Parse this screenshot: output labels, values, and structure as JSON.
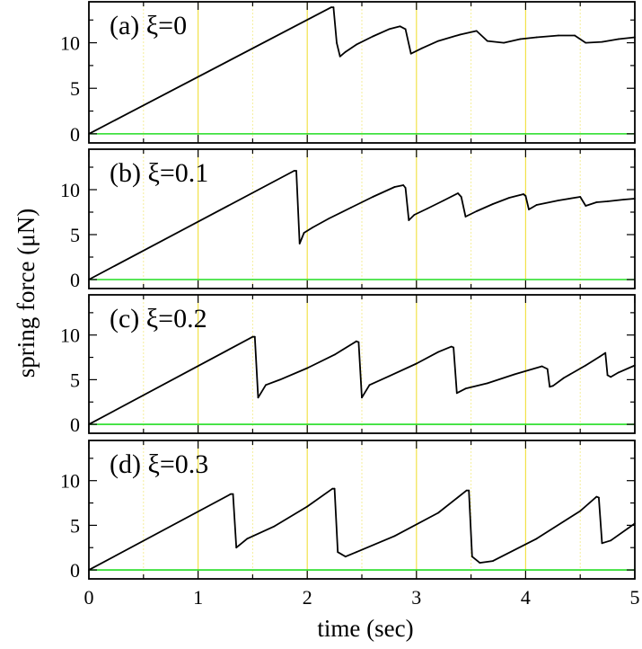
{
  "figure": {
    "xlabel": "time (sec)",
    "ylabel": "spring force (μN)"
  },
  "chart_data": [
    {
      "type": "line",
      "label": "(a) ξ=0",
      "xlim": [
        0,
        5
      ],
      "ylim": [
        -1,
        14.5
      ],
      "xticks": [
        "0",
        "1",
        "2",
        "3",
        "4",
        "5"
      ],
      "yticks": [
        "0",
        "5",
        "10"
      ],
      "grid": "vertical yellow lines at every 0.5 sec",
      "reference_line_y": 0,
      "series": [
        {
          "x": [
            0,
            2.22,
            2.24,
            2.27,
            2.3,
            2.35,
            2.45,
            2.6,
            2.75,
            2.85,
            2.9,
            2.95,
            3.05,
            3.2,
            3.4,
            3.55,
            3.65,
            3.8,
            3.95,
            4.1,
            4.3,
            4.45,
            4.55,
            4.7,
            4.85,
            5.0
          ],
          "y": [
            0,
            13.9,
            13.9,
            10,
            8.5,
            9.0,
            9.8,
            10.7,
            11.5,
            11.8,
            11.5,
            8.8,
            9.4,
            10.2,
            10.9,
            11.3,
            10.2,
            10.0,
            10.4,
            10.6,
            10.8,
            10.8,
            10.0,
            10.1,
            10.4,
            10.6
          ]
        }
      ]
    },
    {
      "type": "line",
      "label": "(b) ξ=0.1",
      "xlim": [
        0,
        5
      ],
      "ylim": [
        -1,
        14.5
      ],
      "xticks": [
        "0",
        "1",
        "2",
        "3",
        "4",
        "5"
      ],
      "yticks": [
        "0",
        "5",
        "10"
      ],
      "grid": "vertical yellow lines at every 0.5 sec",
      "reference_line_y": 0,
      "series": [
        {
          "x": [
            0,
            1.88,
            1.9,
            1.93,
            1.97,
            2.05,
            2.2,
            2.4,
            2.6,
            2.8,
            2.88,
            2.9,
            2.93,
            2.98,
            3.1,
            3.25,
            3.38,
            3.41,
            3.45,
            3.55,
            3.7,
            3.85,
            3.98,
            4.0,
            4.03,
            4.1,
            4.3,
            4.5,
            4.55,
            4.65,
            4.75,
            4.9,
            5.0
          ],
          "y": [
            0,
            12.1,
            12.1,
            4.0,
            5.2,
            5.8,
            6.8,
            8.0,
            9.2,
            10.3,
            10.5,
            10.2,
            6.6,
            7.2,
            7.9,
            8.8,
            9.6,
            9.2,
            7.0,
            7.6,
            8.4,
            9.1,
            9.5,
            9.3,
            7.8,
            8.3,
            8.8,
            9.2,
            8.2,
            8.6,
            8.7,
            8.9,
            9.0
          ]
        }
      ]
    },
    {
      "type": "line",
      "label": "(c) ξ=0.2",
      "xlim": [
        0,
        5
      ],
      "ylim": [
        -1,
        14.5
      ],
      "xticks": [
        "0",
        "1",
        "2",
        "3",
        "4",
        "5"
      ],
      "yticks": [
        "0",
        "5",
        "10"
      ],
      "grid": "vertical yellow lines at every 0.5 sec",
      "reference_line_y": 0,
      "series": [
        {
          "x": [
            0,
            1.5,
            1.52,
            1.55,
            1.62,
            1.75,
            2.0,
            2.25,
            2.45,
            2.47,
            2.5,
            2.57,
            2.75,
            3.0,
            3.2,
            3.32,
            3.34,
            3.37,
            3.45,
            3.65,
            3.9,
            4.15,
            4.2,
            4.22,
            4.25,
            4.35,
            4.55,
            4.68,
            4.73,
            4.75,
            4.78,
            4.85,
            5.0
          ],
          "y": [
            0,
            9.8,
            9.8,
            3.0,
            4.4,
            5.0,
            6.3,
            7.8,
            9.3,
            9.2,
            3.0,
            4.4,
            5.4,
            6.8,
            8.1,
            8.7,
            8.6,
            3.5,
            4.0,
            4.6,
            5.6,
            6.5,
            6.2,
            4.2,
            4.3,
            5.2,
            6.6,
            7.6,
            8.0,
            5.5,
            5.3,
            5.8,
            6.6
          ]
        }
      ]
    },
    {
      "type": "line",
      "label": "(d) ξ=0.3",
      "xlim": [
        0,
        5
      ],
      "ylim": [
        -1,
        14.5
      ],
      "xticks": [
        "0",
        "1",
        "2",
        "3",
        "4",
        "5"
      ],
      "yticks": [
        "0",
        "5",
        "10"
      ],
      "grid": "vertical yellow lines at every 0.5 sec",
      "reference_line_y": 0,
      "series": [
        {
          "x": [
            0,
            1.3,
            1.32,
            1.35,
            1.45,
            1.7,
            2.0,
            2.23,
            2.25,
            2.28,
            2.35,
            2.45,
            2.8,
            3.2,
            3.46,
            3.48,
            3.51,
            3.58,
            3.7,
            4.1,
            4.5,
            4.65,
            4.67,
            4.7,
            4.78,
            5.0
          ],
          "y": [
            0,
            8.5,
            8.5,
            2.5,
            3.5,
            4.9,
            7.1,
            9.1,
            9.1,
            2.0,
            1.5,
            2.0,
            3.8,
            6.4,
            8.9,
            8.9,
            1.5,
            0.8,
            1.0,
            3.5,
            6.6,
            8.2,
            8.1,
            3.0,
            3.3,
            5.2
          ]
        }
      ]
    }
  ]
}
